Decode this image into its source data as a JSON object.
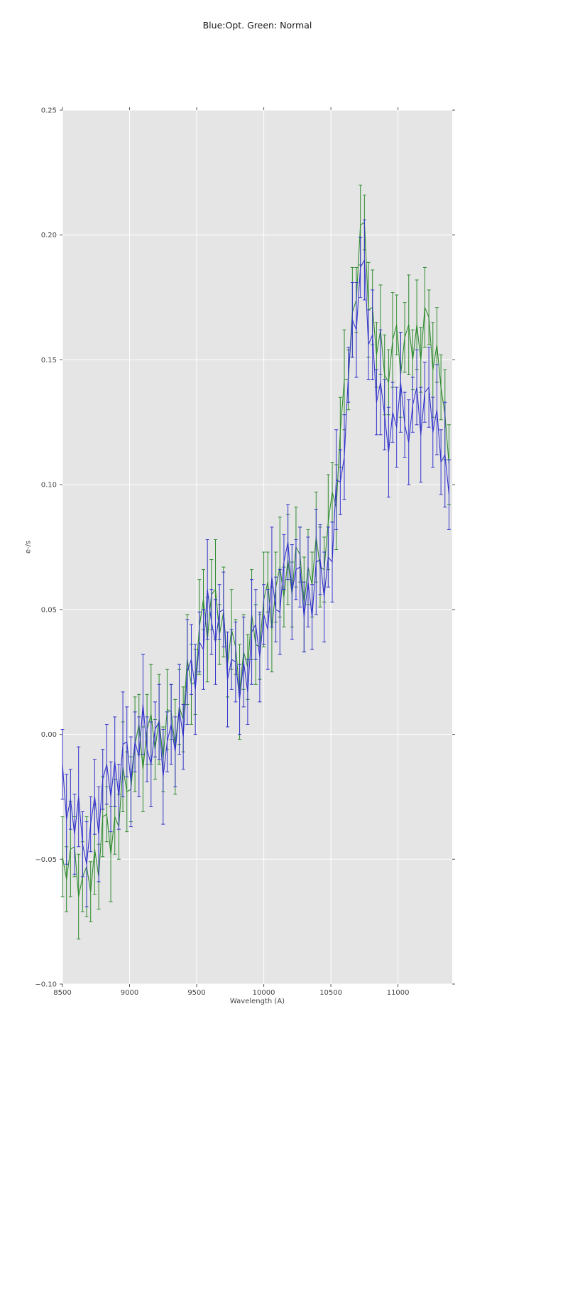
{
  "figure": {
    "title": "Blue:Opt. Green: Normal"
  },
  "chart_data": {
    "type": "line",
    "title": "Blue:Opt. Green: Normal",
    "xlabel": "Wavelength (A)",
    "ylabel": "e-/s",
    "xlim": [
      8500,
      11404
    ],
    "ylim": [
      -0.1,
      0.25
    ],
    "grid": true,
    "legend_position": "none",
    "plot_bg": "#e5e5e5",
    "grid_color": "#ffffff",
    "tick_color": "#555555",
    "label_color": "#444444",
    "x_ticks": [
      8500,
      9000,
      9500,
      10000,
      10500,
      11000
    ],
    "x_tick_labels": [
      "8500",
      "9000",
      "9500",
      "10000",
      "10500",
      "11000"
    ],
    "y_ticks": [
      -0.1,
      -0.05,
      0.0,
      0.05,
      0.1,
      0.15,
      0.2,
      0.25
    ],
    "y_tick_labels": [
      "−0.10",
      "−0.05",
      "0.00",
      "0.05",
      "0.10",
      "0.15",
      "0.20",
      "0.25"
    ],
    "x_start": 8500,
    "x_step": 30,
    "series": [
      {
        "name": "Normal",
        "color": "#2e8b2e",
        "values": [
          -0.049,
          -0.058,
          -0.046,
          -0.045,
          -0.065,
          -0.057,
          -0.053,
          -0.063,
          -0.046,
          -0.057,
          -0.033,
          -0.032,
          -0.048,
          -0.033,
          -0.037,
          -0.013,
          -0.023,
          -0.022,
          -0.004,
          0.004,
          -0.014,
          0.002,
          0.008,
          -0.006,
          0.006,
          -0.01,
          0.01,
          0.009,
          -0.005,
          0.011,
          0.006,
          0.03,
          0.02,
          0.021,
          0.043,
          0.054,
          0.038,
          0.056,
          0.058,
          0.04,
          0.049,
          0.028,
          0.042,
          0.035,
          0.017,
          0.033,
          0.027,
          0.048,
          0.036,
          0.035,
          0.054,
          0.061,
          0.042,
          0.059,
          0.067,
          0.055,
          0.07,
          0.056,
          0.075,
          0.072,
          0.052,
          0.067,
          0.06,
          0.079,
          0.067,
          0.066,
          0.085,
          0.097,
          0.091,
          0.121,
          0.142,
          0.142,
          0.169,
          0.174,
          0.204,
          0.205,
          0.17,
          0.171,
          0.152,
          0.162,
          0.144,
          0.141,
          0.158,
          0.164,
          0.144,
          0.159,
          0.164,
          0.15,
          0.164,
          0.15,
          0.171,
          0.167,
          0.146,
          0.156,
          0.139,
          0.128,
          0.108
        ],
        "yerr": [
          0.016,
          0.013,
          0.019,
          0.012,
          0.017,
          0.014,
          0.02,
          0.012,
          0.018,
          0.013,
          0.016,
          0.011,
          0.019,
          0.015,
          0.013,
          0.018,
          0.016,
          0.013,
          0.019,
          0.012,
          0.017,
          0.014,
          0.02,
          0.012,
          0.018,
          0.013,
          0.016,
          0.011,
          0.019,
          0.015,
          0.013,
          0.018,
          0.016,
          0.013,
          0.019,
          0.012,
          0.017,
          0.014,
          0.02,
          0.012,
          0.018,
          0.013,
          0.016,
          0.011,
          0.019,
          0.015,
          0.013,
          0.018,
          0.016,
          0.013,
          0.019,
          0.012,
          0.017,
          0.014,
          0.02,
          0.012,
          0.018,
          0.013,
          0.016,
          0.011,
          0.019,
          0.015,
          0.013,
          0.018,
          0.016,
          0.013,
          0.019,
          0.012,
          0.017,
          0.014,
          0.02,
          0.012,
          0.018,
          0.013,
          0.016,
          0.011,
          0.019,
          0.015,
          0.013,
          0.018,
          0.016,
          0.013,
          0.019,
          0.012,
          0.017,
          0.014,
          0.02,
          0.012,
          0.018,
          0.013,
          0.016,
          0.011,
          0.019,
          0.015,
          0.013,
          0.018,
          0.016
        ]
      },
      {
        "name": "Opt",
        "color": "#3333cc",
        "values": [
          -0.012,
          -0.034,
          -0.026,
          -0.04,
          -0.025,
          -0.044,
          -0.052,
          -0.036,
          -0.025,
          -0.04,
          -0.018,
          -0.012,
          -0.025,
          -0.011,
          -0.025,
          -0.004,
          -0.003,
          -0.019,
          -0.003,
          -0.009,
          0.012,
          -0.006,
          -0.012,
          0.002,
          0.005,
          -0.017,
          -0.003,
          0.004,
          -0.007,
          0.01,
          -0.001,
          0.025,
          0.03,
          0.018,
          0.037,
          0.034,
          0.058,
          0.045,
          0.037,
          0.049,
          0.05,
          0.022,
          0.03,
          0.029,
          0.014,
          0.029,
          0.017,
          0.041,
          0.044,
          0.031,
          0.048,
          0.042,
          0.063,
          0.05,
          0.049,
          0.069,
          0.077,
          0.057,
          0.066,
          0.067,
          0.047,
          0.061,
          0.047,
          0.069,
          0.07,
          0.055,
          0.071,
          0.069,
          0.102,
          0.101,
          0.111,
          0.144,
          0.166,
          0.162,
          0.187,
          0.19,
          0.156,
          0.16,
          0.133,
          0.141,
          0.128,
          0.113,
          0.129,
          0.123,
          0.141,
          0.124,
          0.117,
          0.132,
          0.139,
          0.12,
          0.137,
          0.139,
          0.121,
          0.13,
          0.109,
          0.112,
          0.096
        ],
        "yerr": [
          0.014,
          0.018,
          0.012,
          0.016,
          0.02,
          0.013,
          0.017,
          0.011,
          0.015,
          0.019,
          0.012,
          0.016,
          0.014,
          0.018,
          0.013,
          0.021,
          0.014,
          0.018,
          0.012,
          0.016,
          0.02,
          0.013,
          0.017,
          0.011,
          0.015,
          0.019,
          0.012,
          0.016,
          0.014,
          0.018,
          0.013,
          0.021,
          0.014,
          0.018,
          0.012,
          0.016,
          0.02,
          0.013,
          0.017,
          0.011,
          0.015,
          0.019,
          0.012,
          0.016,
          0.014,
          0.018,
          0.013,
          0.021,
          0.014,
          0.018,
          0.012,
          0.016,
          0.02,
          0.013,
          0.017,
          0.011,
          0.015,
          0.019,
          0.012,
          0.016,
          0.014,
          0.018,
          0.013,
          0.021,
          0.014,
          0.018,
          0.012,
          0.016,
          0.02,
          0.013,
          0.017,
          0.011,
          0.015,
          0.019,
          0.012,
          0.016,
          0.014,
          0.018,
          0.013,
          0.021,
          0.014,
          0.018,
          0.012,
          0.016,
          0.02,
          0.013,
          0.017,
          0.011,
          0.015,
          0.019,
          0.012,
          0.016,
          0.014,
          0.018,
          0.013,
          0.021,
          0.014
        ]
      }
    ]
  }
}
